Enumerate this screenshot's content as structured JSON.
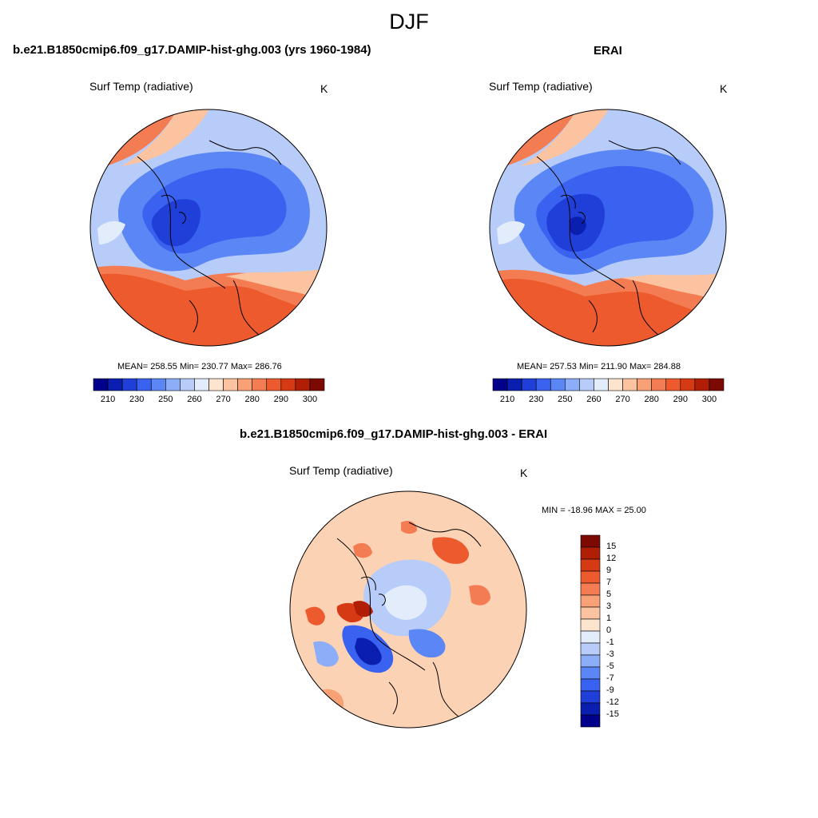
{
  "figure": {
    "main_title": "DJF"
  },
  "panels": [
    {
      "title": "b.e21.B1850cmip6.f09_g17.DAMIP-hist-ghg.003 (yrs 1960-1984)",
      "variable": "Surf Temp (radiative)",
      "units": "K",
      "stats": "MEAN= 258.55  Min= 230.77  Max= 286.76"
    },
    {
      "title": "ERAI",
      "variable": "Surf Temp (radiative)",
      "units": "K",
      "stats": "MEAN= 257.53  Min= 211.90  Max= 284.88"
    },
    {
      "title": "b.e21.B1850cmip6.f09_g17.DAMIP-hist-ghg.003 - ERAI",
      "variable": "Surf Temp (radiative)",
      "units": "K",
      "stats": "MIN = -18.96 MAX =  25.00"
    }
  ],
  "colorbar_abs": {
    "orientation": "horizontal",
    "tick_labels": [
      "210",
      "230",
      "250",
      "260",
      "270",
      "280",
      "290",
      "300"
    ],
    "colors": [
      "#00008b",
      "#0a1fb0",
      "#1f3fd8",
      "#3a62f0",
      "#5b86f5",
      "#8caef8",
      "#b8ccf9",
      "#e2ecfb",
      "#fde4cf",
      "#fbc3a0",
      "#f8a076",
      "#f47c52",
      "#ec5a2e",
      "#d63a14",
      "#b01e06",
      "#7c0a02"
    ]
  },
  "colorbar_diff": {
    "orientation": "vertical",
    "tick_labels": [
      "15",
      "12",
      "9",
      "7",
      "5",
      "3",
      "1",
      "0",
      "-1",
      "-3",
      "-5",
      "-7",
      "-9",
      "-12",
      "-15"
    ],
    "colors": [
      "#7c0a02",
      "#b01e06",
      "#d63a14",
      "#ec5a2e",
      "#f47c52",
      "#f8a076",
      "#fbc3a0",
      "#fde4cf",
      "#e2ecfb",
      "#b8ccf9",
      "#8caef8",
      "#5b86f5",
      "#3a62f0",
      "#1f3fd8",
      "#0a1fb0",
      "#00008b"
    ]
  },
  "palette": {
    "warm_1": "#fde4cf",
    "warm_2": "#fbc3a0",
    "warm_3": "#f8a076",
    "warm_4": "#f47c52",
    "warm_5": "#ec5a2e",
    "warm_6": "#d63a14",
    "cool_1": "#e2ecfb",
    "cool_2": "#b8ccf9",
    "cool_3": "#8caef8",
    "cool_4": "#5b86f5",
    "cool_5": "#3a62f0",
    "cool_6": "#1f3fd8"
  }
}
